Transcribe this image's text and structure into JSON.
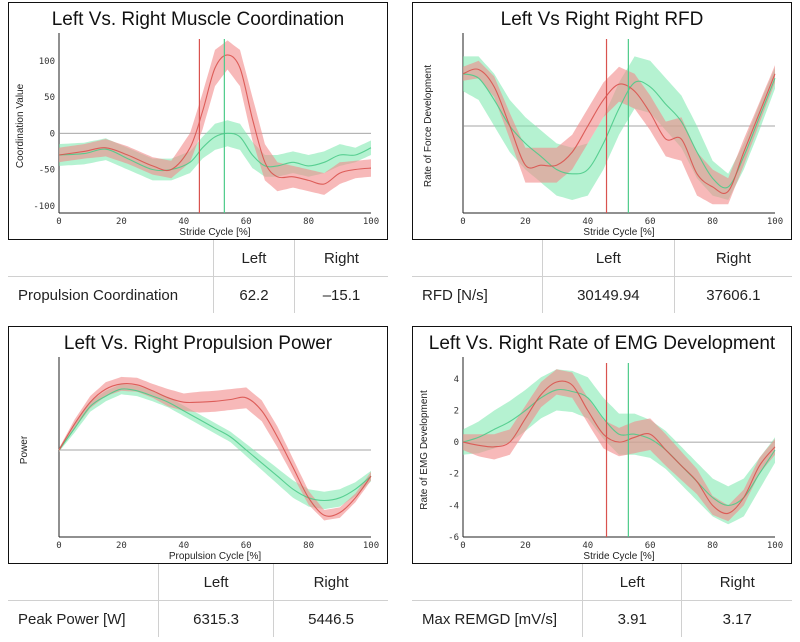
{
  "colors": {
    "left_line": "#d9534f",
    "left_band": "#f28a8a",
    "right_line": "#4ccb8a",
    "right_band": "#78e8ac",
    "zero_line": "#888888"
  },
  "chart_data": [
    {
      "type": "line",
      "title": "Left Vs. Right Muscle Coordination",
      "xlabel": "Stride Cycle [%]",
      "ylabel": "Coordination Value",
      "xlim": [
        0,
        100
      ],
      "ylim": [
        -110,
        130
      ],
      "xticks": [
        "0",
        "20",
        "40",
        "60",
        "80",
        "100"
      ],
      "yticks": [
        {
          "v": 100,
          "t": "100"
        },
        {
          "v": 50,
          "t": "50"
        },
        {
          "v": 0,
          "t": "0"
        },
        {
          "v": -50,
          "t": "-50"
        },
        {
          "v": -100,
          "t": "-100"
        }
      ],
      "zero_line": 0,
      "markers": {
        "left": 45,
        "right": 53
      },
      "series": [
        {
          "name": "Left",
          "x": [
            0,
            8,
            15,
            22,
            30,
            36,
            42,
            46,
            50,
            54,
            58,
            62,
            66,
            70,
            75,
            80,
            85,
            90,
            95,
            100
          ],
          "mean": [
            -30,
            -25,
            -20,
            -30,
            -45,
            -50,
            -20,
            30,
            90,
            108,
            90,
            20,
            -40,
            -60,
            -60,
            -65,
            -70,
            -55,
            -50,
            -48
          ],
          "band": [
            10,
            10,
            12,
            12,
            12,
            12,
            20,
            25,
            25,
            20,
            25,
            30,
            25,
            20,
            15,
            15,
            15,
            15,
            12,
            12
          ]
        },
        {
          "name": "Right",
          "x": [
            0,
            8,
            15,
            22,
            30,
            36,
            42,
            46,
            50,
            54,
            58,
            62,
            66,
            70,
            75,
            80,
            85,
            90,
            95,
            100
          ],
          "mean": [
            -30,
            -28,
            -22,
            -35,
            -50,
            -50,
            -40,
            -20,
            -5,
            0,
            -5,
            -30,
            -45,
            -45,
            -40,
            -45,
            -40,
            -30,
            -30,
            -20
          ],
          "band": [
            15,
            15,
            15,
            15,
            15,
            15,
            15,
            15,
            18,
            18,
            18,
            18,
            15,
            15,
            15,
            15,
            15,
            15,
            10,
            10
          ]
        }
      ]
    },
    {
      "type": "line",
      "title": "Left Vs Right Right RFD",
      "xlabel": "Stride Cycle [%]",
      "ylabel": "Rate of Force Development",
      "xlim": [
        0,
        100
      ],
      "ylim": [
        -1,
        1
      ],
      "xticks": [
        "0",
        "20",
        "40",
        "60",
        "80",
        "100"
      ],
      "yticks": [],
      "zero_line": 0,
      "markers": {
        "left": 46,
        "right": 53
      },
      "series": [
        {
          "name": "Left",
          "x": [
            0,
            5,
            10,
            15,
            20,
            25,
            30,
            35,
            40,
            45,
            50,
            55,
            60,
            65,
            70,
            75,
            80,
            85,
            90,
            95,
            100
          ],
          "mean": [
            0.6,
            0.65,
            0.45,
            0.0,
            -0.45,
            -0.45,
            -0.45,
            -0.3,
            0.0,
            0.3,
            0.48,
            0.4,
            0.15,
            -0.15,
            -0.15,
            -0.55,
            -0.7,
            -0.75,
            -0.3,
            0.15,
            0.6
          ],
          "band": [
            0.08,
            0.1,
            0.12,
            0.15,
            0.2,
            0.2,
            0.2,
            0.2,
            0.2,
            0.2,
            0.2,
            0.2,
            0.2,
            0.2,
            0.25,
            0.25,
            0.2,
            0.15,
            0.15,
            0.12,
            0.1
          ]
        },
        {
          "name": "Right",
          "x": [
            0,
            5,
            10,
            15,
            20,
            25,
            30,
            35,
            40,
            45,
            50,
            55,
            60,
            65,
            70,
            75,
            80,
            85,
            90,
            95,
            100
          ],
          "mean": [
            0.6,
            0.55,
            0.3,
            0.0,
            -0.2,
            -0.35,
            -0.5,
            -0.55,
            -0.5,
            -0.2,
            0.2,
            0.5,
            0.45,
            0.25,
            0.05,
            -0.3,
            -0.6,
            -0.7,
            -0.35,
            0.1,
            0.55
          ],
          "band": [
            0.2,
            0.25,
            0.3,
            0.3,
            0.3,
            0.3,
            0.3,
            0.3,
            0.3,
            0.3,
            0.3,
            0.3,
            0.3,
            0.3,
            0.3,
            0.3,
            0.2,
            0.15,
            0.15,
            0.15,
            0.12
          ]
        }
      ]
    },
    {
      "type": "line",
      "title": "Left Vs. Right Propulsion Power",
      "xlabel": "Propulsion Cycle [%]",
      "ylabel": "Power",
      "xlim": [
        0,
        100
      ],
      "ylim": [
        -1,
        1
      ],
      "xticks": [
        "0",
        "20",
        "40",
        "60",
        "80",
        "100"
      ],
      "yticks": [],
      "zero_line": 0,
      "markers": null,
      "series": [
        {
          "name": "Left",
          "x": [
            0,
            5,
            10,
            15,
            20,
            25,
            30,
            35,
            40,
            45,
            50,
            55,
            60,
            65,
            70,
            75,
            80,
            85,
            90,
            95,
            100
          ],
          "mean": [
            0.0,
            0.3,
            0.55,
            0.7,
            0.76,
            0.75,
            0.68,
            0.6,
            0.55,
            0.55,
            0.56,
            0.58,
            0.6,
            0.45,
            0.15,
            -0.2,
            -0.55,
            -0.75,
            -0.72,
            -0.55,
            -0.3
          ],
          "band": [
            0.02,
            0.05,
            0.07,
            0.08,
            0.08,
            0.08,
            0.08,
            0.1,
            0.1,
            0.12,
            0.12,
            0.12,
            0.12,
            0.12,
            0.12,
            0.1,
            0.08,
            0.06,
            0.06,
            0.05,
            0.05
          ]
        },
        {
          "name": "Right",
          "x": [
            0,
            5,
            10,
            15,
            20,
            25,
            30,
            35,
            40,
            45,
            50,
            55,
            60,
            65,
            70,
            75,
            80,
            85,
            90,
            95,
            100
          ],
          "mean": [
            0.0,
            0.25,
            0.5,
            0.62,
            0.7,
            0.68,
            0.62,
            0.55,
            0.45,
            0.35,
            0.25,
            0.15,
            0.0,
            -0.15,
            -0.3,
            -0.45,
            -0.55,
            -0.58,
            -0.55,
            -0.45,
            -0.3
          ],
          "band": [
            0.02,
            0.05,
            0.06,
            0.06,
            0.06,
            0.06,
            0.06,
            0.06,
            0.06,
            0.06,
            0.06,
            0.06,
            0.07,
            0.08,
            0.09,
            0.1,
            0.1,
            0.1,
            0.1,
            0.08,
            0.06
          ]
        }
      ]
    },
    {
      "type": "line",
      "title": "Left Vs. Right Rate of EMG Development",
      "xlabel": "Stride Cycle [%]",
      "ylabel": "Rate of EMG Development",
      "xlim": [
        0,
        100
      ],
      "ylim": [
        -6,
        5
      ],
      "xticks": [
        "0",
        "20",
        "40",
        "60",
        "80",
        "100"
      ],
      "yticks": [
        {
          "v": 4,
          "t": "4"
        },
        {
          "v": 2,
          "t": "2"
        },
        {
          "v": 0,
          "t": "0"
        },
        {
          "v": -2,
          "t": "-2"
        },
        {
          "v": -4,
          "t": "-4"
        },
        {
          "v": -6,
          "t": "-6"
        }
      ],
      "zero_line": 0,
      "markers": {
        "left": 46,
        "right": 53
      },
      "series": [
        {
          "name": "Left",
          "x": [
            0,
            5,
            10,
            15,
            20,
            25,
            30,
            35,
            40,
            45,
            50,
            55,
            60,
            65,
            70,
            75,
            80,
            85,
            90,
            95,
            100
          ],
          "mean": [
            0.0,
            -0.2,
            -0.3,
            0.0,
            1.5,
            3.0,
            3.8,
            3.6,
            2.0,
            0.5,
            0.0,
            0.3,
            0.5,
            -0.5,
            -1.5,
            -2.5,
            -4.0,
            -4.5,
            -3.5,
            -1.5,
            -0.3
          ],
          "band": [
            0.5,
            0.7,
            0.8,
            0.8,
            0.8,
            0.8,
            0.8,
            0.8,
            0.8,
            0.9,
            0.9,
            1.0,
            1.0,
            1.0,
            0.9,
            0.8,
            0.6,
            0.5,
            0.5,
            0.5,
            0.5
          ]
        },
        {
          "name": "Right",
          "x": [
            0,
            5,
            10,
            15,
            20,
            25,
            30,
            35,
            40,
            45,
            50,
            55,
            60,
            65,
            70,
            75,
            80,
            85,
            90,
            95,
            100
          ],
          "mean": [
            0.0,
            0.3,
            0.8,
            1.3,
            2.0,
            2.8,
            3.3,
            3.2,
            2.8,
            1.5,
            0.5,
            0.5,
            0.2,
            -0.5,
            -1.5,
            -2.5,
            -3.5,
            -4.0,
            -3.5,
            -2.0,
            -0.5
          ],
          "band": [
            0.8,
            1.0,
            1.2,
            1.3,
            1.3,
            1.3,
            1.3,
            1.3,
            1.3,
            1.3,
            1.3,
            1.3,
            1.2,
            1.2,
            1.2,
            1.2,
            1.2,
            1.2,
            1.2,
            1.0,
            0.8
          ]
        }
      ]
    }
  ],
  "metrics": [
    {
      "name": "Propulsion Coordination",
      "left": "62.2",
      "right": "–15.1"
    },
    {
      "name": "RFD [N/s]",
      "left": "30149.94",
      "right": "37606.1"
    },
    {
      "name": "Peak Power [W]",
      "left": "6315.3",
      "right": "5446.5"
    },
    {
      "name": "Max REMGD [mV/s]",
      "left": "3.91",
      "right": "3.17"
    }
  ],
  "table_headers": {
    "left": "Left",
    "right": "Right"
  }
}
